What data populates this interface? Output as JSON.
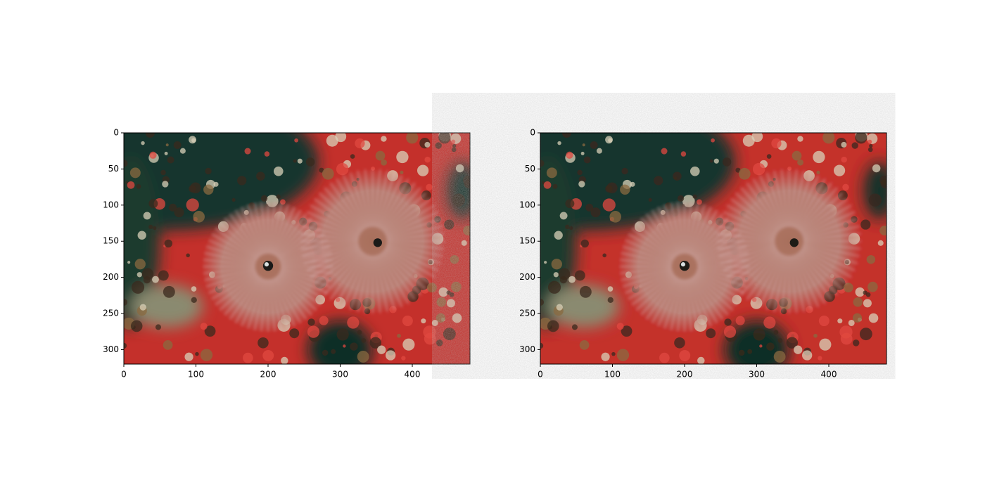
{
  "chart_data": [
    {
      "type": "image",
      "xlim": [
        0,
        480
      ],
      "ylim": [
        320,
        0
      ],
      "xticks": [
        0,
        100,
        200,
        300,
        400
      ],
      "yticks": [
        0,
        50,
        100,
        150,
        200,
        250,
        300
      ]
    },
    {
      "type": "image",
      "xlim": [
        0,
        480
      ],
      "ylim": [
        320,
        0
      ],
      "xticks": [
        0,
        100,
        200,
        300,
        400
      ],
      "yticks": [
        0,
        50,
        100,
        150,
        200,
        250,
        300
      ]
    }
  ]
}
